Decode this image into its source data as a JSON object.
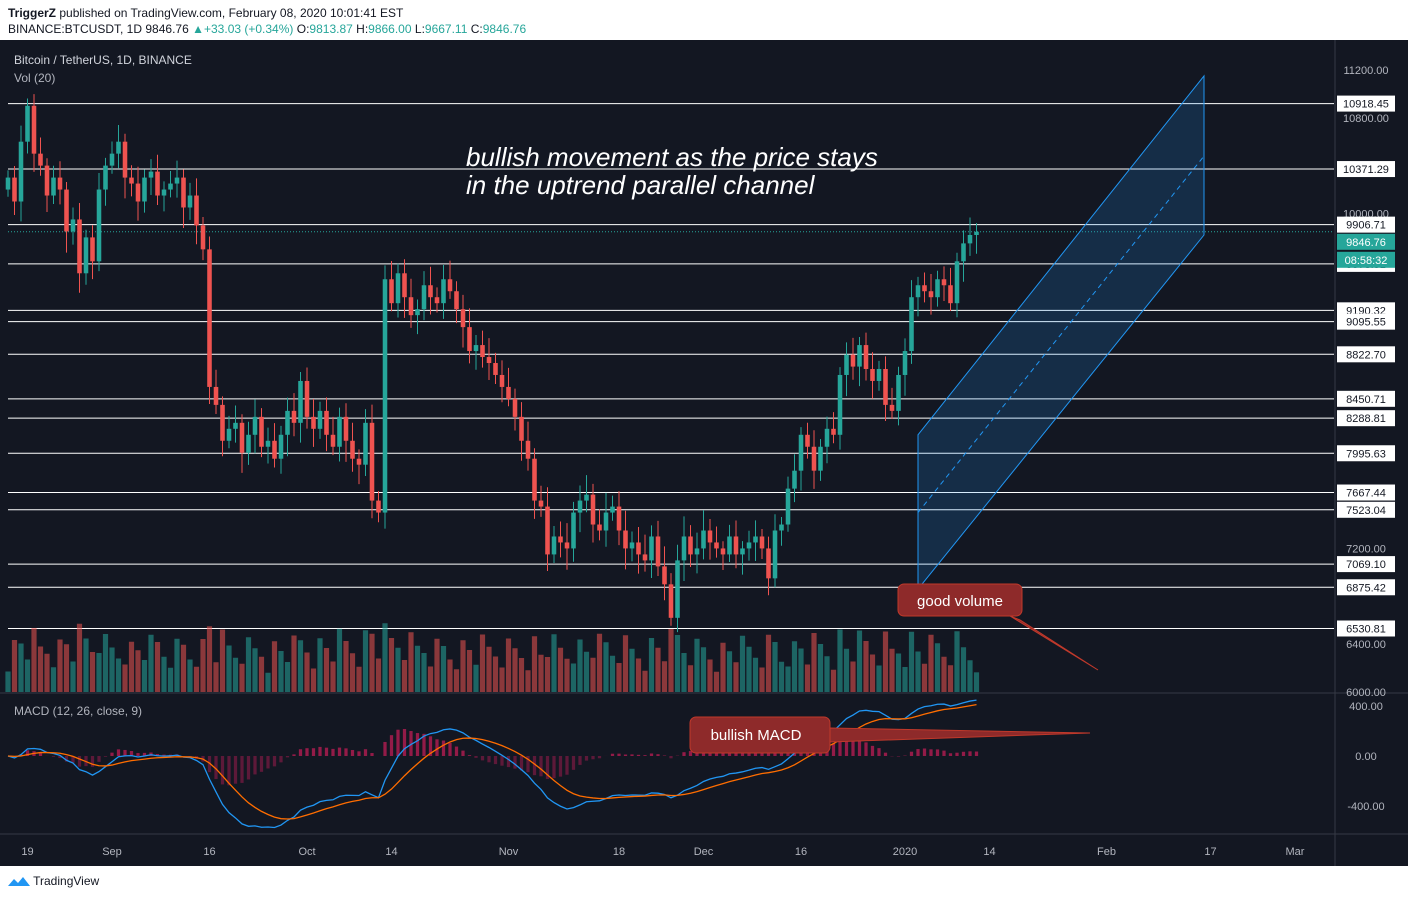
{
  "header": {
    "user": "TriggerZ",
    "published_text": "published on TradingView.com, February 08, 2020 10:01:41 EST",
    "symbol": "BINANCE:BTCUSDT, 1D",
    "last": "9846.76",
    "change": "+33.03 (+0.34%)",
    "o_label": "O:",
    "o_value": "9813.87",
    "h_label": "H:",
    "h_value": "9866.00",
    "l_label": "L:",
    "l_value": "9667.11",
    "c_label": "C:",
    "c_value": "9846.76"
  },
  "legend": {
    "title": "Bitcoin / TetherUS, 1D, BINANCE",
    "volume": "Vol (20)",
    "macd": "MACD (12, 26, close, 9)"
  },
  "footer": {
    "brand": "TradingView"
  },
  "colors": {
    "background": "#131722",
    "up": "#26a69a",
    "down": "#ef5350",
    "macd_line": "#2196f3",
    "signal_line": "#ff6d00",
    "channel": "#2196f3",
    "callout": "#8e2a2a"
  },
  "chart_data": {
    "type": "candlestick",
    "title": "Bitcoin / TetherUS, 1D, BINANCE",
    "price_axis_labels": [
      "11200.00",
      "10800.00",
      "10000.00",
      "7200.00",
      "6400.00",
      "6000.00"
    ],
    "price_range": [
      6000,
      11450
    ],
    "x_ticks": [
      "19",
      "Sep",
      "16",
      "Oct",
      "14",
      "Nov",
      "18",
      "Dec",
      "16",
      "2020",
      "14",
      "Feb",
      "17",
      "Mar"
    ],
    "x_range": [
      "2019-08-16",
      "2020-03-07"
    ],
    "horizontal_levels": [
      10918.45,
      10371.29,
      9906.71,
      9578.51,
      9190.32,
      9095.55,
      8822.7,
      8450.71,
      8288.81,
      7995.63,
      7667.44,
      7523.04,
      7069.1,
      6875.42,
      6530.81
    ],
    "current_price": 9846.76,
    "countdown": "08:58:32",
    "annotation_main": "bullish movement as the price stays",
    "annotation_main_2": "in the uptrend parallel channel",
    "callout_volume": "good volume",
    "callout_macd": "bullish MACD",
    "closes": [
      10300,
      10100,
      10600,
      10900,
      10500,
      10400,
      10150,
      10300,
      10200,
      9850,
      9950,
      9500,
      9800,
      9600,
      10200,
      10400,
      10500,
      10600,
      10300,
      10250,
      10100,
      10300,
      10350,
      10150,
      10200,
      10250,
      10300,
      10050,
      10150,
      9900,
      9700,
      8550,
      8400,
      8100,
      8200,
      8250,
      8000,
      8150,
      8300,
      8050,
      8100,
      7950,
      8150,
      8350,
      8250,
      8600,
      8300,
      8200,
      8350,
      8150,
      8050,
      8300,
      8100,
      7950,
      7900,
      8250,
      7600,
      7500,
      9450,
      9250,
      9500,
      9300,
      9150,
      9200,
      9400,
      9300,
      9250,
      9450,
      9350,
      9200,
      9050,
      8850,
      8900,
      8800,
      8750,
      8650,
      8550,
      8450,
      8300,
      8100,
      7950,
      7600,
      7550,
      7150,
      7300,
      7250,
      7200,
      7500,
      7600,
      7650,
      7400,
      7350,
      7500,
      7550,
      7350,
      7200,
      7250,
      7150,
      7100,
      7300,
      7050,
      6900,
      6620,
      7100,
      7300,
      7150,
      7200,
      7350,
      7250,
      7200,
      7150,
      7300,
      7150,
      7200,
      7250,
      7300,
      7200,
      6950,
      7350,
      7400,
      7700,
      7850,
      8150,
      8050,
      7850,
      8050,
      8200,
      8150,
      8650,
      8820,
      8720,
      8900,
      8700,
      8600,
      8700,
      8400,
      8350,
      8650,
      8850,
      9300,
      9400,
      9350,
      9300,
      9450,
      9400,
      9250,
      9600,
      9750,
      9820,
      9846.76
    ],
    "volume_unit": "relative",
    "macd_hist_note": "histogram shown as bars"
  }
}
